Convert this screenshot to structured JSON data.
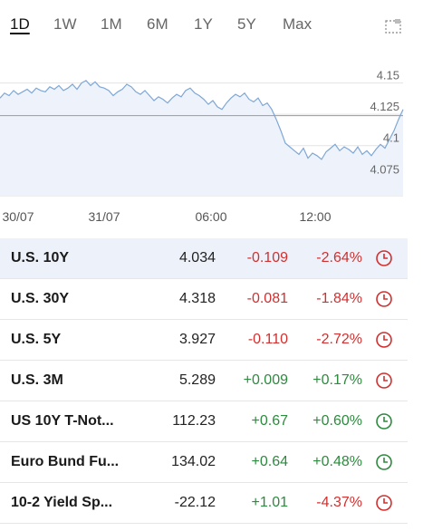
{
  "range_tabs": [
    {
      "label": "1D",
      "active": true
    },
    {
      "label": "1W",
      "active": false
    },
    {
      "label": "1M",
      "active": false
    },
    {
      "label": "6M",
      "active": false
    },
    {
      "label": "1Y",
      "active": false
    },
    {
      "label": "5Y",
      "active": false
    },
    {
      "label": "Max",
      "active": false
    }
  ],
  "chart_data": {
    "type": "area",
    "y_ticks": [
      "4.15",
      "4.125",
      "4.1",
      "4.075"
    ],
    "x_ticks": [
      "30/07",
      "31/07",
      "06:00",
      "12:00"
    ],
    "ylim": [
      4.06,
      4.17
    ],
    "reference_value": 4.124,
    "line_color": "#7ea7d6",
    "fill_color": "#eef3fb",
    "grid": true,
    "y": [
      4.138,
      4.142,
      4.14,
      4.144,
      4.141,
      4.143,
      4.145,
      4.142,
      4.146,
      4.144,
      4.143,
      4.147,
      4.145,
      4.148,
      4.144,
      4.146,
      4.149,
      4.145,
      4.15,
      4.152,
      4.148,
      4.151,
      4.147,
      4.146,
      4.144,
      4.14,
      4.143,
      4.145,
      4.149,
      4.147,
      4.143,
      4.141,
      4.144,
      4.14,
      4.136,
      4.139,
      4.137,
      4.134,
      4.138,
      4.141,
      4.139,
      4.144,
      4.146,
      4.142,
      4.14,
      4.137,
      4.133,
      4.136,
      4.131,
      4.129,
      4.134,
      4.138,
      4.141,
      4.139,
      4.142,
      4.137,
      4.135,
      4.138,
      4.132,
      4.134,
      4.129,
      4.121,
      4.112,
      4.102,
      4.099,
      4.096,
      4.093,
      4.098,
      4.09,
      4.094,
      4.092,
      4.089,
      4.095,
      4.098,
      4.101,
      4.096,
      4.099,
      4.097,
      4.094,
      4.099,
      4.093,
      4.096,
      4.092,
      4.097,
      4.101,
      4.098,
      4.105,
      4.112,
      4.121,
      4.129
    ]
  },
  "rows": [
    {
      "name": "U.S. 10Y",
      "last": "4.034",
      "change": "-0.109",
      "change_pct": "-2.64%",
      "direction": "neg",
      "selected": true,
      "status_color": "#d0302f"
    },
    {
      "name": "U.S. 30Y",
      "last": "4.318",
      "change": "-0.081",
      "change_pct": "-1.84%",
      "direction": "neg",
      "selected": false,
      "status_color": "#d0302f"
    },
    {
      "name": "U.S. 5Y",
      "last": "3.927",
      "change": "-0.110",
      "change_pct": "-2.72%",
      "direction": "neg",
      "selected": false,
      "status_color": "#d0302f"
    },
    {
      "name": "U.S. 3M",
      "last": "5.289",
      "change": "+0.009",
      "change_pct": "+0.17%",
      "direction": "pos",
      "selected": false,
      "status_color": "#d0302f"
    },
    {
      "name": "US 10Y T-Not...",
      "last": "112.23",
      "change": "+0.67",
      "change_pct": "+0.60%",
      "direction": "pos",
      "selected": false,
      "status_color": "#2d8a3e"
    },
    {
      "name": "Euro Bund Fu...",
      "last": "134.02",
      "change": "+0.64",
      "change_pct": "+0.48%",
      "direction": "pos",
      "selected": false,
      "status_color": "#2d8a3e"
    },
    {
      "name": "10-2 Yield Sp...",
      "last": "-22.12",
      "change": "+1.01",
      "change_pct": "-4.37%",
      "direction": "pos",
      "pct_direction": "neg",
      "selected": false,
      "status_color": "#d0302f"
    }
  ]
}
